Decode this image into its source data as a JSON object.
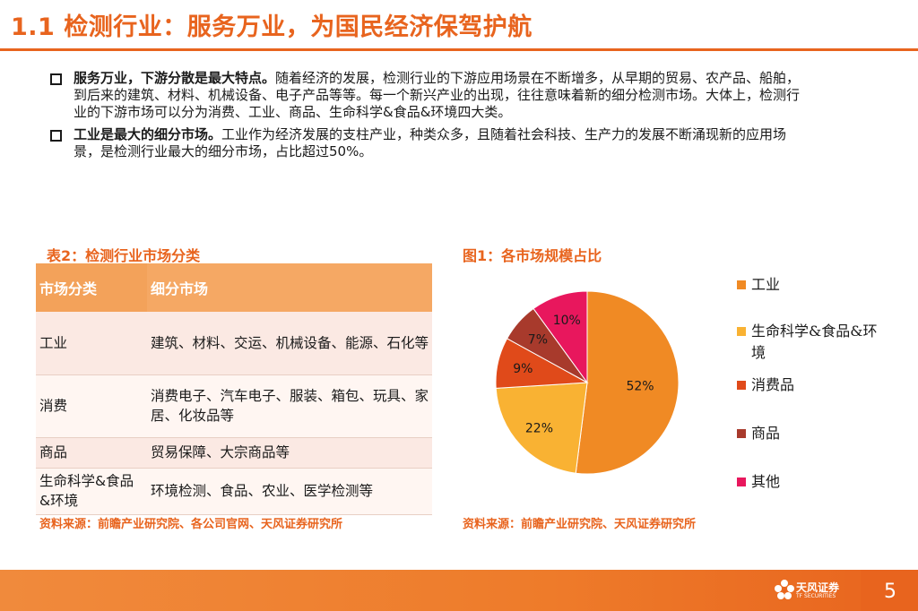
{
  "header": {
    "title": "1.1 检测行业：服务万业，为国民经济保驾护航"
  },
  "bullets": [
    {
      "lead": "服务万业，下游分散是最大特点。",
      "body": "随着经济的发展，检测行业的下游应用场景在不断增多，从早期的贸易、农产品、船舶，到后来的建筑、材料、机械设备、电子产品等等。每一个新兴产业的出现，往往意味着新的细分检测市场。大体上，检测行业的下游市场可以分为消费、工业、商品、生命科学&食品&环境四大类。"
    },
    {
      "lead": "工业是最大的细分市场。",
      "body": "工业作为经济发展的支柱产业，种类众多，且随着社会科技、生产力的发展不断涌现新的应用场景，是检测行业最大的细分市场，占比超过50%。"
    }
  ],
  "table": {
    "caption": "表2：检测行业市场分类",
    "headers": [
      "市场分类",
      "细分市场"
    ],
    "rows": [
      [
        "工业",
        "建筑、材料、交运、机械设备、能源、石化等"
      ],
      [
        "消费",
        "消费电子、汽车电子、服装、箱包、玩具、家居、化妆品等"
      ],
      [
        "商品",
        "贸易保障、大宗商品等"
      ],
      [
        "生命科学&食品&环境",
        "环境检测、食品、农业、医学检测等"
      ]
    ],
    "source": "资料来源：前瞻产业研究院、各公司官网、天风证券研究所"
  },
  "chart_data": {
    "type": "pie",
    "title": "图1：各市场规模占比",
    "categories": [
      "工业",
      "生命科学&食品&环境",
      "消费品",
      "商品",
      "其他"
    ],
    "values": [
      52,
      22,
      9,
      7,
      10
    ],
    "labels": [
      "52%",
      "22%",
      "9%",
      "7%",
      "10%"
    ],
    "colors": [
      "#f08a24",
      "#f9b233",
      "#e04a1a",
      "#a83a2c",
      "#e8175d"
    ],
    "legend_position": "right",
    "source": "资料来源：前瞻产业研究院、天风证券研究所"
  },
  "footer": {
    "brand_cn": "天风证券",
    "brand_en": "TF SECURITIES",
    "page": "5"
  }
}
